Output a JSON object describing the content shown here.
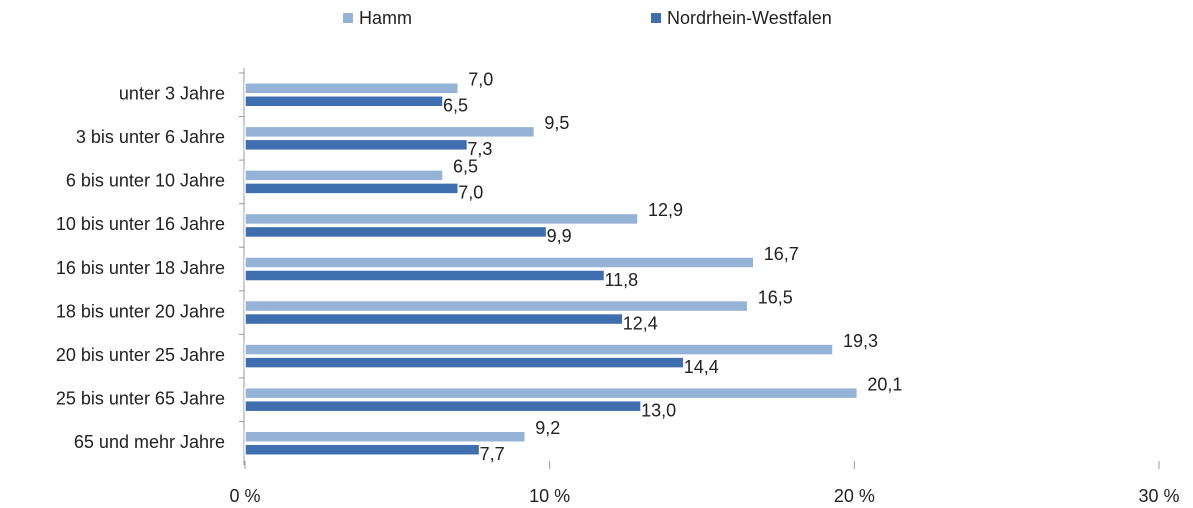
{
  "chart_data": {
    "type": "bar",
    "orientation": "horizontal",
    "categories": [
      "unter 3 Jahre",
      "3 bis unter 6 Jahre",
      "6 bis unter 10 Jahre",
      "10 bis unter 16 Jahre",
      "16 bis unter 18 Jahre",
      "18 bis unter 20 Jahre",
      "20 bis unter 25 Jahre",
      "25 bis unter 65 Jahre",
      "65 und mehr Jahre"
    ],
    "series": [
      {
        "name": "Hamm",
        "color": "#95b3d7",
        "values": [
          7.0,
          9.5,
          6.5,
          12.9,
          16.7,
          16.5,
          19.3,
          20.1,
          9.2
        ],
        "value_labels": [
          "7,0",
          "9,5",
          "6,5",
          "12,9",
          "16,7",
          "16,5",
          "19,3",
          "20,1",
          "9,2"
        ]
      },
      {
        "name": "Nordrhein-Westfalen",
        "color": "#3f6fae",
        "values": [
          6.5,
          7.3,
          7.0,
          9.9,
          11.8,
          12.4,
          14.4,
          13.0,
          7.7
        ],
        "value_labels": [
          "6,5",
          "7,3",
          "7,0",
          "9,9",
          "11,8",
          "12,4",
          "14,4",
          "13,0",
          "7,7"
        ]
      }
    ],
    "xlim": [
      0,
      30
    ],
    "xticks": [
      {
        "value": 0,
        "label": "0 %"
      },
      {
        "value": 10,
        "label": "10 %"
      },
      {
        "value": 20,
        "label": "20 %"
      },
      {
        "value": 30,
        "label": "30 %"
      }
    ],
    "legend": "top"
  }
}
